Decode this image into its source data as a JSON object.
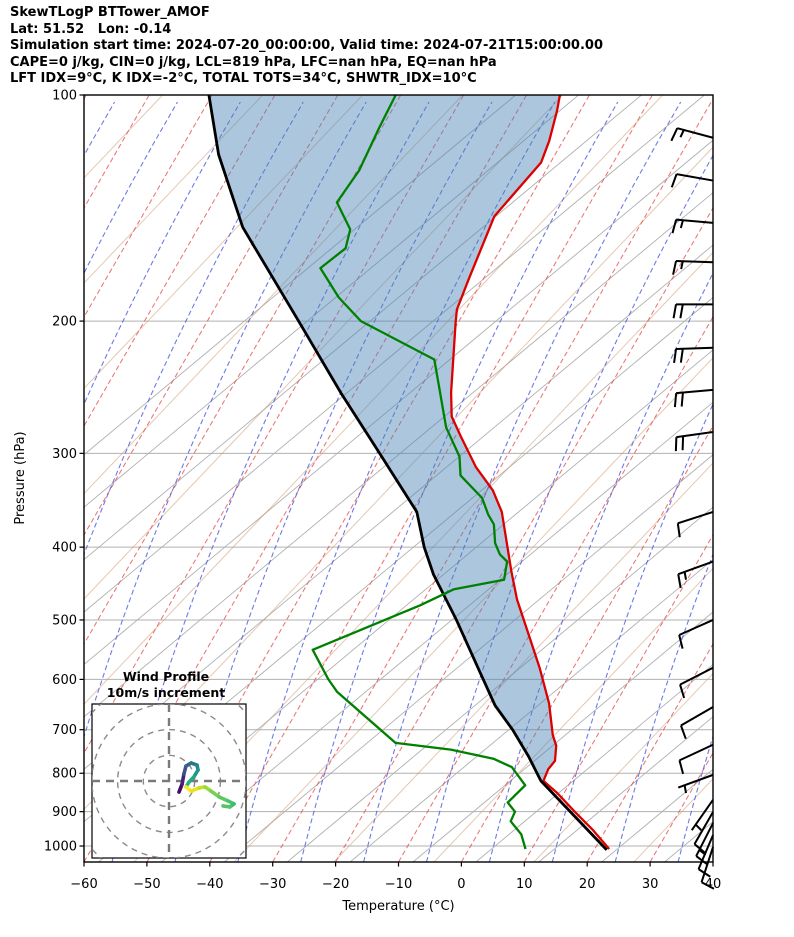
{
  "header": {
    "title": "SkewTLogP BTTower_AMOF",
    "location": "Lat: 51.52   Lon: -0.14",
    "times": "Simulation start time: 2024-07-20_00:00:00, Valid time: 2024-07-21T15:00:00.00",
    "indices_line1": "CAPE=0 j/kg, CIN=0 j/kg, LCL=819 hPa, LFC=nan hPa, EQ=nan hPa",
    "indices_line2": "LFT IDX=9°C, K IDX=-2°C, TOTAL TOTS=34°C, SHWTR_IDX=10°C"
  },
  "axes": {
    "xlabel": "Temperature (°C)",
    "ylabel": "Pressure (hPa)",
    "x_ticks": [
      -60,
      -50,
      -40,
      -30,
      -20,
      -10,
      0,
      10,
      20,
      30,
      40
    ],
    "y_ticks": [
      100,
      200,
      300,
      400,
      500,
      600,
      700,
      800,
      900,
      1000
    ],
    "xlim": [
      -60,
      40
    ],
    "p_top": 100,
    "p_bottom": 1050
  },
  "chart_data": {
    "type": "line",
    "title": "Skew-T Log-P sounding, BT Tower AMOF",
    "x_is": "temperature_degC_skewed",
    "y_is": "pressure_hPa_log",
    "temperature_profile": [
      [
        1009,
        22.3
      ],
      [
        950,
        17.8
      ],
      [
        900,
        13.4
      ],
      [
        850,
        8.9
      ],
      [
        819,
        5.6
      ],
      [
        790,
        5.3
      ],
      [
        770,
        5.6
      ],
      [
        735,
        4.4
      ],
      [
        712,
        2.9
      ],
      [
        646,
        -0.6
      ],
      [
        580,
        -5.3
      ],
      [
        527,
        -9.8
      ],
      [
        470,
        -15.2
      ],
      [
        431,
        -18.7
      ],
      [
        359,
        -25.7
      ],
      [
        336,
        -29.1
      ],
      [
        313,
        -33.9
      ],
      [
        285,
        -39.1
      ],
      [
        268,
        -42.4
      ],
      [
        249,
        -44.7
      ],
      [
        201,
        -50.4
      ],
      [
        193,
        -51.4
      ],
      [
        176,
        -52.3
      ],
      [
        145,
        -54.0
      ],
      [
        123,
        -51.5
      ],
      [
        115,
        -52.2
      ],
      [
        105,
        -53.7
      ],
      [
        100,
        -54.7
      ]
    ],
    "dewpoint_profile": [
      [
        1009,
        9.0
      ],
      [
        965,
        7.0
      ],
      [
        927,
        4.1
      ],
      [
        900,
        3.9
      ],
      [
        875,
        1.9
      ],
      [
        830,
        3.1
      ],
      [
        785,
        -0.7
      ],
      [
        765,
        -4.4
      ],
      [
        744,
        -12.0
      ],
      [
        729,
        -21.4
      ],
      [
        623,
        -35.4
      ],
      [
        600,
        -37.9
      ],
      [
        548,
        -43.1
      ],
      [
        478,
        -30.1
      ],
      [
        455,
        -26.2
      ],
      [
        442,
        -19.1
      ],
      [
        418,
        -20.3
      ],
      [
        409,
        -22.1
      ],
      [
        395,
        -23.9
      ],
      [
        373,
        -25.8
      ],
      [
        362,
        -27.6
      ],
      [
        344,
        -30.1
      ],
      [
        321,
        -35.6
      ],
      [
        303,
        -37.5
      ],
      [
        277,
        -42.3
      ],
      [
        243,
        -47.4
      ],
      [
        225,
        -50.4
      ],
      [
        200,
        -65.6
      ],
      [
        186,
        -71.3
      ],
      [
        170,
        -76.9
      ],
      [
        160,
        -74.7
      ],
      [
        151,
        -75.7
      ],
      [
        139,
        -80.3
      ],
      [
        126,
        -79.7
      ],
      [
        111,
        -80.4
      ],
      [
        100,
        -80.8
      ]
    ],
    "parcel_profile": [
      [
        1012,
        22.0
      ],
      [
        819,
        5.2
      ],
      [
        760,
        1.0
      ],
      [
        700,
        -4.0
      ],
      [
        650,
        -9.0
      ],
      [
        581,
        -15.0
      ],
      [
        500,
        -23.0
      ],
      [
        435,
        -30.8
      ],
      [
        400,
        -34.8
      ],
      [
        359,
        -39.2
      ],
      [
        300,
        -50.5
      ],
      [
        250,
        -62.0
      ],
      [
        200,
        -75.5
      ],
      [
        150,
        -93.0
      ],
      [
        120,
        -103.5
      ],
      [
        100,
        -110.5
      ]
    ],
    "lcl_hpa": 819,
    "wind_barbs": [
      [
        114,
        285,
        15
      ],
      [
        130,
        280,
        10
      ],
      [
        148,
        275,
        15
      ],
      [
        167,
        272,
        15
      ],
      [
        190,
        270,
        20
      ],
      [
        217,
        268,
        20
      ],
      [
        247,
        265,
        20
      ],
      [
        281,
        262,
        20
      ],
      [
        359,
        252,
        10
      ],
      [
        418,
        250,
        15
      ],
      [
        500,
        246,
        10
      ],
      [
        579,
        243,
        10
      ],
      [
        653,
        240,
        10
      ],
      [
        733,
        245,
        10
      ],
      [
        804,
        250,
        5
      ],
      [
        868,
        215,
        5
      ],
      [
        901,
        210,
        10
      ],
      [
        932,
        207,
        15
      ],
      [
        967,
        203,
        10
      ],
      [
        1003,
        198,
        10
      ]
    ],
    "hodograph": {
      "title": "Wind Profile",
      "subtitle": "10m/s increment",
      "ring_increment_ms": 10,
      "rings_ms": [
        10,
        20,
        30,
        40
      ],
      "trace_uv_ms": [
        [
          3.9,
          -4.3
        ],
        [
          5.1,
          -1.2
        ],
        [
          5.8,
          2.7
        ],
        [
          6.6,
          5.8
        ],
        [
          8.6,
          7.0
        ],
        [
          10.9,
          6.2
        ],
        [
          11.3,
          4.3
        ],
        [
          9.7,
          1.6
        ],
        [
          7.8,
          -0.4
        ],
        [
          6.6,
          -2.3
        ],
        [
          8.6,
          -3.9
        ],
        [
          11.7,
          -2.7
        ],
        [
          14.0,
          -2.3
        ],
        [
          16.3,
          -3.9
        ],
        [
          19.5,
          -6.2
        ],
        [
          23.0,
          -7.8
        ],
        [
          25.3,
          -8.9
        ],
        [
          23.7,
          -10.1
        ],
        [
          21.0,
          -9.7
        ]
      ],
      "trace_colors": [
        "#450a69",
        "#48227a",
        "#424f8c",
        "#38618d",
        "#2c748e",
        "#25858e",
        "#1f978b",
        "#22a884",
        "#2ab07f",
        "#fde725",
        "#eae51a",
        "#c5e021",
        "#9bd93c",
        "#7ad151",
        "#5ec962",
        "#4ac16d",
        "#3fbc73",
        "#52c569"
      ]
    }
  },
  "style": {
    "temperature_color": "#dc0000",
    "dewpoint_color": "#008000",
    "parcel_color": "#000000",
    "shade_color": "rgba(70,130,180,0.45)",
    "isotherm_dashed_color": "rgba(228,82,82,0.8)",
    "moist_dashed_color": "rgba(68,85,221,0.78)",
    "gray_diag_color": "#b0b0b0",
    "tan_line_color": "rgba(205,155,115,0.55)",
    "grid_color": "#b0b0b0",
    "barb_color": "#000000",
    "inset_ring_color": "#8a8a8a",
    "inset_cross_color": "#7a7a7a"
  }
}
